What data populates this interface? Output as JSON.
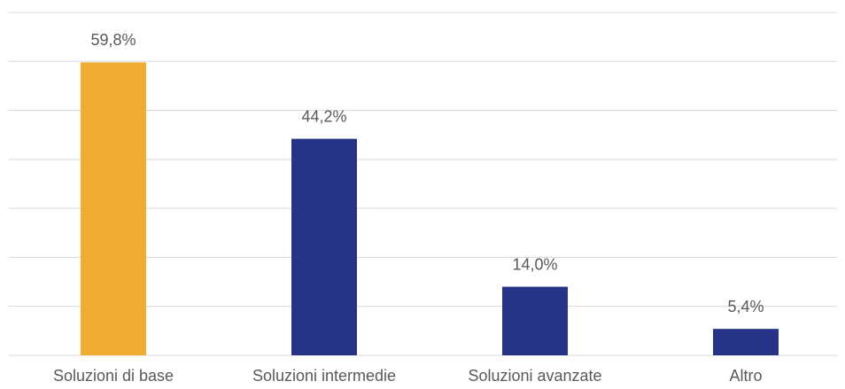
{
  "chart_data": {
    "type": "bar",
    "categories": [
      "Soluzioni di base",
      "Soluzioni intermedie",
      "Soluzioni avanzate",
      "Altro"
    ],
    "values": [
      59.8,
      44.2,
      14.0,
      5.4
    ],
    "value_labels": [
      "59,8%",
      "44,2%",
      "14,0%",
      "5,4%"
    ],
    "colors": [
      "#f0ad33",
      "#263387",
      "#263387",
      "#263387"
    ],
    "ylim": [
      0,
      70
    ],
    "yticks": [
      0,
      10,
      20,
      30,
      40,
      50,
      60,
      70
    ],
    "grid": true
  }
}
